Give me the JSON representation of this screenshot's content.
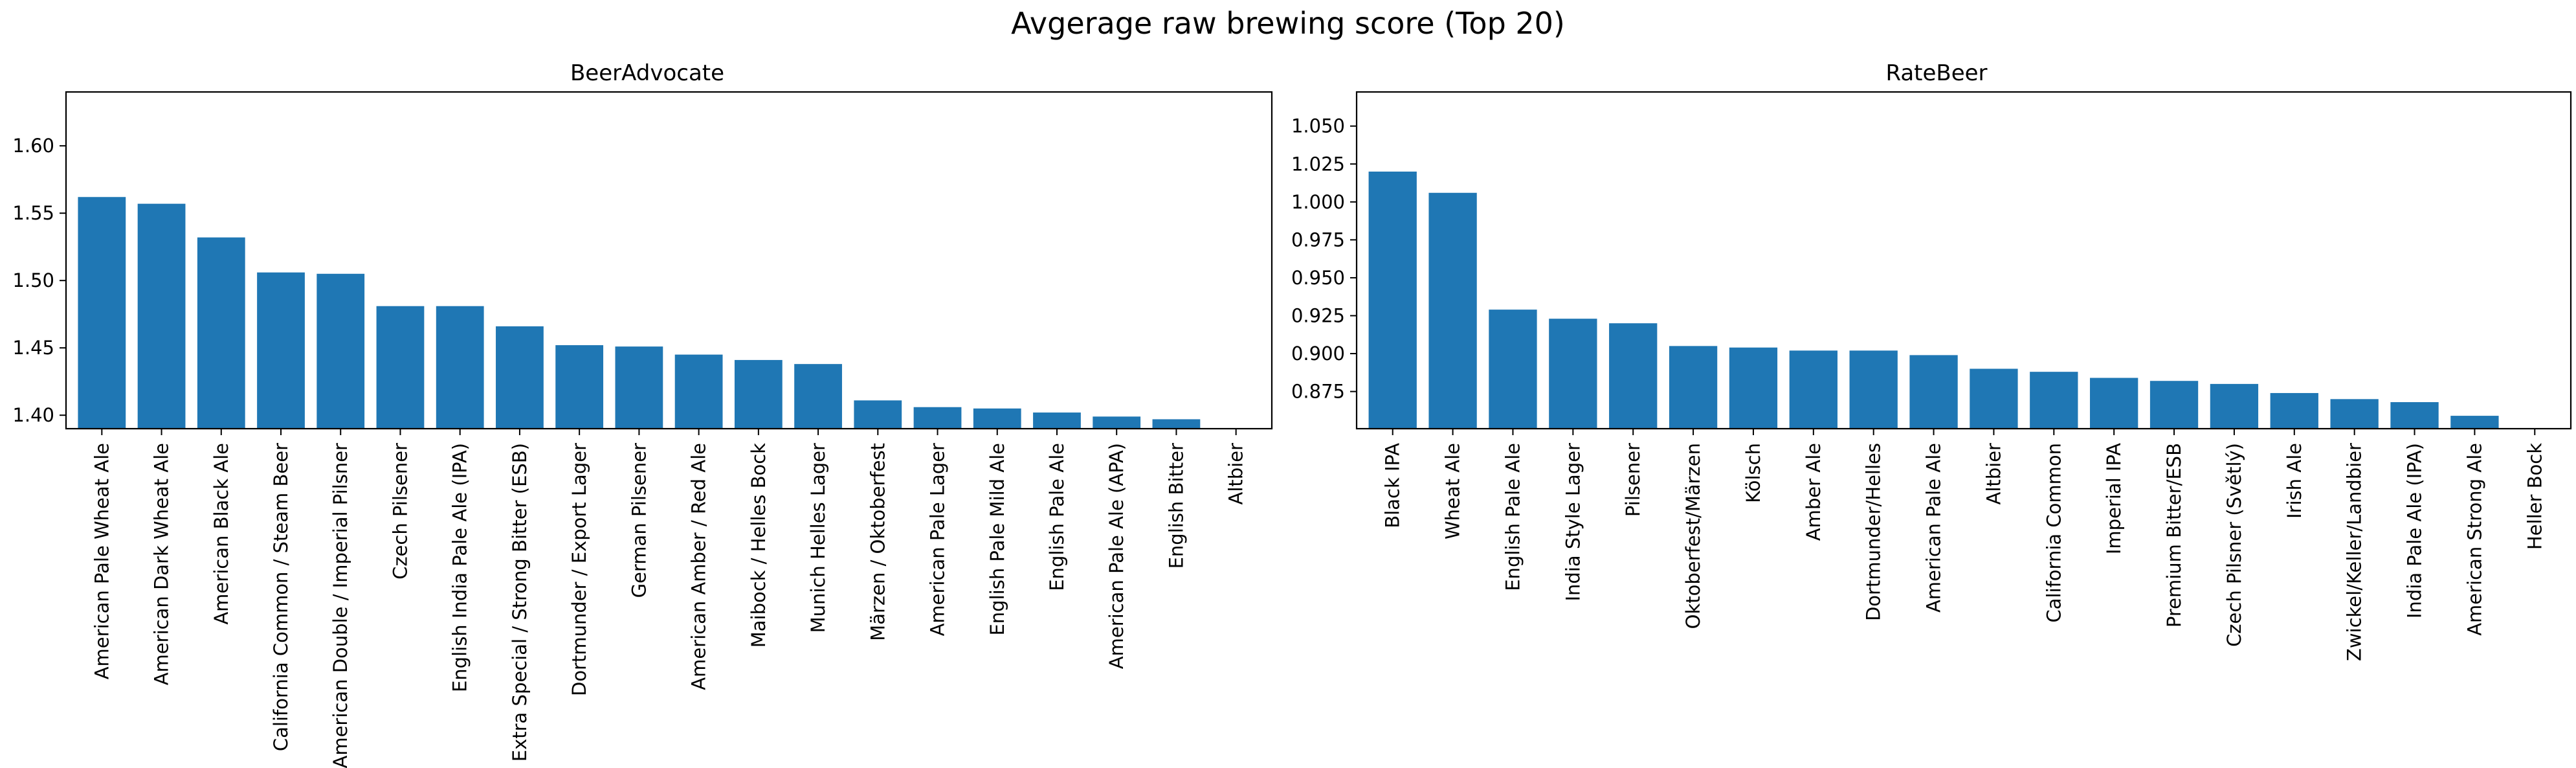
{
  "figure": {
    "title": "Avgerage raw brewing score (Top 20)",
    "bar_color": "#1f77b4"
  },
  "chart_data": [
    {
      "type": "bar",
      "title": "BeerAdvocate",
      "xlabel": "",
      "ylabel": "",
      "ylim": [
        1.39,
        1.64
      ],
      "yticks": [
        "1.40",
        "1.45",
        "1.50",
        "1.55",
        "1.60"
      ],
      "grid": false,
      "categories": [
        "American Pale Wheat Ale",
        "American Dark Wheat Ale",
        "American Black Ale",
        "California Common / Steam Beer",
        "American Double / Imperial Pilsner",
        "Czech Pilsener",
        "English India Pale Ale (IPA)",
        "Extra Special / Strong Bitter (ESB)",
        "Dortmunder / Export Lager",
        "German Pilsener",
        "American Amber / Red Ale",
        "Maibock / Helles Bock",
        "Munich Helles Lager",
        "Märzen / Oktoberfest",
        "American Pale Lager",
        "English Pale Mild Ale",
        "English Pale Ale",
        "American Pale Ale (APA)",
        "English Bitter",
        "Altbier"
      ],
      "values": [
        1.562,
        1.557,
        1.532,
        1.506,
        1.505,
        1.481,
        1.481,
        1.466,
        1.452,
        1.451,
        1.445,
        1.441,
        1.438,
        1.411,
        1.406,
        1.405,
        1.402,
        1.399,
        1.397,
        1.389
      ]
    },
    {
      "type": "bar",
      "title": "RateBeer",
      "xlabel": "",
      "ylabel": "",
      "ylim": [
        0.8505,
        1.0725
      ],
      "yticks": [
        "0.875",
        "0.900",
        "0.925",
        "0.950",
        "0.975",
        "1.000",
        "1.025",
        "1.050"
      ],
      "grid": false,
      "categories": [
        "Black IPA",
        "Wheat Ale",
        "English Pale Ale",
        "India Style Lager",
        "Pilsener",
        "Oktoberfest/Märzen",
        "Kölsch",
        "Amber Ale",
        "Dortmunder/Helles",
        "American Pale Ale",
        "Altbier",
        "California Common",
        "Imperial IPA",
        "Premium Bitter/ESB",
        "Czech Pilsner (Světlý)",
        "Irish Ale",
        "Zwickel/Keller/Landbier",
        "India Pale Ale (IPA)",
        "American Strong Ale",
        "Heller Bock"
      ],
      "values": [
        1.02,
        1.006,
        0.929,
        0.923,
        0.92,
        0.905,
        0.904,
        0.902,
        0.902,
        0.899,
        0.89,
        0.888,
        0.884,
        0.882,
        0.88,
        0.874,
        0.87,
        0.868,
        0.859,
        0.849
      ]
    }
  ]
}
